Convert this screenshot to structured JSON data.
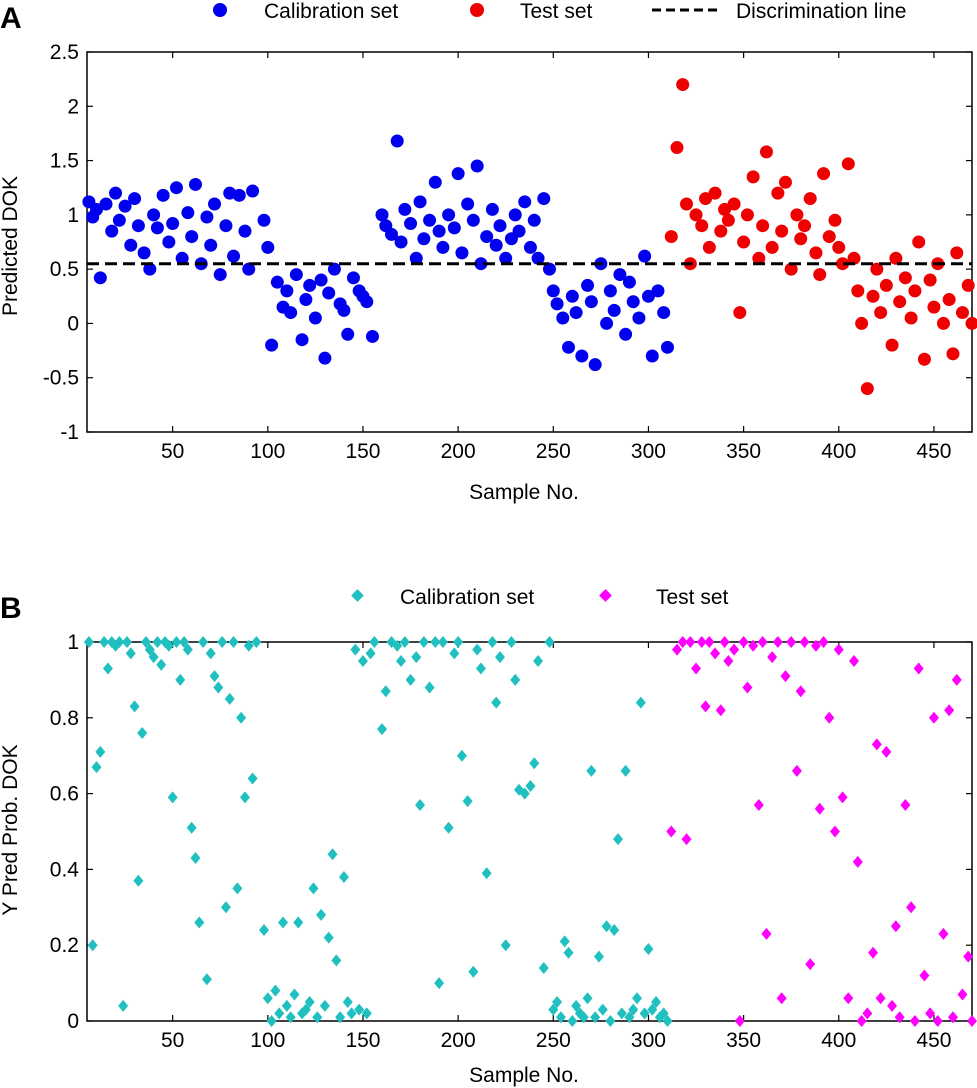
{
  "chart_data": [
    {
      "panel_label": "A",
      "type": "scatter",
      "xlabel": "Sample No.",
      "ylabel": "Predicted DOK",
      "xlim": [
        5,
        470
      ],
      "ylim": [
        -1,
        2.5
      ],
      "xticks": [
        50,
        100,
        150,
        200,
        250,
        300,
        350,
        400,
        450
      ],
      "yticks": [
        -1,
        -0.5,
        0,
        0.5,
        1,
        1.5,
        2,
        2.5
      ],
      "xtick_labels": [
        "50",
        "100",
        "150",
        "200",
        "250",
        "300",
        "350",
        "400",
        "450"
      ],
      "ytick_labels": [
        "-1",
        "-0.5",
        "0",
        "0.5",
        "1",
        "1.5",
        "2",
        "2.5"
      ],
      "legend": [
        "Calibration set",
        "Test set",
        "Discrimination line"
      ],
      "discrimination_line": 0.55,
      "series": [
        {
          "name": "Calibration set",
          "color": "#0000ee",
          "marker": "circle",
          "x": [
            6,
            8,
            10,
            12,
            15,
            18,
            20,
            22,
            25,
            28,
            30,
            32,
            35,
            38,
            40,
            42,
            45,
            48,
            50,
            52,
            55,
            58,
            60,
            62,
            65,
            68,
            70,
            72,
            75,
            78,
            80,
            82,
            85,
            88,
            90,
            92,
            98,
            100,
            102,
            105,
            108,
            110,
            112,
            115,
            118,
            120,
            122,
            125,
            128,
            130,
            132,
            135,
            138,
            140,
            142,
            145,
            148,
            150,
            152,
            155,
            160,
            162,
            165,
            168,
            170,
            172,
            175,
            178,
            180,
            182,
            185,
            188,
            190,
            192,
            195,
            198,
            200,
            202,
            205,
            208,
            210,
            212,
            215,
            218,
            220,
            222,
            225,
            228,
            230,
            232,
            235,
            238,
            240,
            242,
            245,
            248,
            250,
            252,
            255,
            258,
            260,
            262,
            265,
            268,
            270,
            272,
            275,
            278,
            280,
            282,
            285,
            288,
            290,
            292,
            295,
            298,
            300,
            302,
            305,
            308,
            310
          ],
          "y": [
            1.12,
            0.98,
            1.05,
            0.42,
            1.1,
            0.85,
            1.2,
            0.95,
            1.08,
            0.72,
            1.15,
            0.9,
            0.65,
            0.5,
            1.0,
            0.88,
            1.18,
            0.75,
            0.92,
            1.25,
            0.6,
            1.02,
            0.8,
            1.28,
            0.55,
            0.98,
            0.72,
            1.1,
            0.45,
            0.9,
            1.2,
            0.62,
            1.18,
            0.85,
            0.5,
            1.22,
            0.95,
            0.7,
            -0.2,
            0.38,
            0.15,
            0.3,
            0.1,
            0.45,
            -0.15,
            0.22,
            0.35,
            0.05,
            0.4,
            -0.32,
            0.28,
            0.5,
            0.18,
            0.12,
            -0.1,
            0.42,
            0.3,
            0.25,
            0.2,
            -0.12,
            1.0,
            0.9,
            0.82,
            1.68,
            0.75,
            1.05,
            0.92,
            0.6,
            1.12,
            0.78,
            0.95,
            1.3,
            0.85,
            0.7,
            1.0,
            0.88,
            1.38,
            0.65,
            1.1,
            0.95,
            1.45,
            0.55,
            0.8,
            1.05,
            0.72,
            0.9,
            0.6,
            0.78,
            1.0,
            0.85,
            1.12,
            0.7,
            0.95,
            0.6,
            1.15,
            0.5,
            0.3,
            0.18,
            0.05,
            -0.22,
            0.25,
            0.1,
            -0.3,
            0.35,
            0.2,
            -0.38,
            0.55,
            0.0,
            0.3,
            0.12,
            0.45,
            -0.1,
            0.38,
            0.2,
            0.05,
            0.62,
            0.25,
            -0.3,
            0.3,
            0.1,
            -0.22
          ]
        },
        {
          "name": "Test set",
          "color": "#ee0000",
          "marker": "circle",
          "x": [
            312,
            315,
            318,
            320,
            322,
            325,
            328,
            330,
            332,
            335,
            338,
            340,
            342,
            345,
            348,
            350,
            352,
            355,
            358,
            360,
            362,
            365,
            368,
            370,
            372,
            375,
            378,
            380,
            382,
            385,
            388,
            390,
            392,
            395,
            398,
            400,
            402,
            405,
            408,
            410,
            412,
            415,
            418,
            420,
            422,
            425,
            428,
            430,
            432,
            435,
            438,
            440,
            442,
            445,
            448,
            450,
            452,
            455,
            458,
            460,
            462,
            465,
            468,
            470
          ],
          "y": [
            0.8,
            1.62,
            2.2,
            1.1,
            0.55,
            1.0,
            0.9,
            1.15,
            0.7,
            1.2,
            0.85,
            1.05,
            0.95,
            1.1,
            0.1,
            0.75,
            1.0,
            1.35,
            0.6,
            0.9,
            1.58,
            0.7,
            1.2,
            0.85,
            1.3,
            0.5,
            1.0,
            0.78,
            0.9,
            1.15,
            0.65,
            0.45,
            1.38,
            0.8,
            0.95,
            0.7,
            0.55,
            1.47,
            0.6,
            0.3,
            0.0,
            -0.6,
            0.25,
            0.5,
            0.1,
            0.35,
            -0.2,
            0.6,
            0.2,
            0.42,
            0.05,
            0.3,
            0.75,
            -0.33,
            0.4,
            0.15,
            0.55,
            0.0,
            0.22,
            -0.28,
            0.65,
            0.1,
            0.35,
            0.0
          ]
        }
      ]
    },
    {
      "panel_label": "B",
      "type": "scatter",
      "xlabel": "Sample No.",
      "ylabel": "Y Pred Prob. DOK",
      "xlim": [
        5,
        470
      ],
      "ylim": [
        0,
        1
      ],
      "xticks": [
        50,
        100,
        150,
        200,
        250,
        300,
        350,
        400,
        450
      ],
      "yticks": [
        0,
        0.2,
        0.4,
        0.6,
        0.8,
        1
      ],
      "xtick_labels": [
        "50",
        "100",
        "150",
        "200",
        "250",
        "300",
        "350",
        "400",
        "450"
      ],
      "ytick_labels": [
        "0",
        "0.2",
        "0.4",
        "0.6",
        "0.8",
        "1"
      ],
      "legend": [
        "Calibration set",
        "Test set"
      ],
      "series": [
        {
          "name": "Calibration set",
          "color": "#20c0c0",
          "marker": "diamond",
          "x": [
            6,
            8,
            10,
            12,
            14,
            16,
            18,
            20,
            22,
            24,
            26,
            28,
            30,
            32,
            34,
            36,
            38,
            40,
            42,
            44,
            46,
            48,
            50,
            52,
            54,
            56,
            58,
            60,
            62,
            64,
            66,
            68,
            70,
            72,
            74,
            76,
            78,
            80,
            82,
            84,
            86,
            88,
            90,
            92,
            94,
            98,
            100,
            102,
            104,
            106,
            108,
            110,
            112,
            114,
            116,
            118,
            120,
            122,
            124,
            126,
            128,
            130,
            132,
            134,
            136,
            138,
            140,
            142,
            144,
            146,
            148,
            150,
            152,
            154,
            156,
            160,
            162,
            165,
            168,
            170,
            172,
            175,
            178,
            180,
            182,
            185,
            188,
            190,
            192,
            195,
            198,
            200,
            202,
            205,
            208,
            210,
            212,
            215,
            218,
            220,
            222,
            225,
            228,
            230,
            232,
            235,
            238,
            240,
            242,
            245,
            248,
            250,
            252,
            254,
            256,
            258,
            260,
            262,
            264,
            266,
            268,
            270,
            272,
            274,
            276,
            278,
            280,
            282,
            284,
            286,
            288,
            290,
            292,
            294,
            296,
            298,
            300,
            302,
            304,
            306,
            308,
            310
          ],
          "y": [
            1.0,
            0.2,
            0.67,
            0.71,
            1.0,
            0.93,
            1.0,
            0.99,
            1.0,
            0.04,
            1.0,
            0.97,
            0.83,
            0.37,
            0.76,
            1.0,
            0.98,
            0.96,
            1.0,
            0.94,
            1.0,
            0.99,
            0.59,
            1.0,
            0.9,
            1.0,
            0.98,
            0.51,
            0.43,
            0.26,
            1.0,
            0.11,
            0.97,
            0.91,
            0.88,
            1.0,
            0.3,
            0.85,
            1.0,
            0.35,
            0.8,
            0.59,
            0.99,
            0.64,
            1.0,
            0.24,
            0.06,
            0.0,
            0.08,
            0.02,
            0.26,
            0.04,
            0.01,
            0.07,
            0.26,
            0.02,
            0.03,
            0.05,
            0.35,
            0.01,
            0.28,
            0.04,
            0.22,
            0.44,
            0.16,
            0.01,
            0.38,
            0.05,
            0.02,
            0.98,
            0.03,
            0.95,
            0.02,
            0.97,
            1.0,
            0.77,
            0.87,
            1.0,
            0.99,
            0.95,
            1.0,
            0.9,
            0.96,
            0.57,
            1.0,
            0.88,
            1.0,
            0.1,
            1.0,
            0.51,
            0.97,
            1.0,
            0.7,
            0.58,
            0.13,
            0.98,
            0.93,
            0.39,
            1.0,
            0.84,
            0.96,
            0.2,
            1.0,
            0.9,
            0.61,
            0.6,
            0.62,
            0.68,
            0.95,
            0.14,
            1.0,
            0.03,
            0.05,
            0.01,
            0.21,
            0.18,
            0.0,
            0.04,
            0.02,
            0.01,
            0.06,
            0.66,
            0.01,
            0.17,
            0.03,
            0.25,
            0.0,
            0.24,
            0.48,
            0.02,
            0.66,
            0.01,
            0.03,
            0.06,
            0.84,
            0.02,
            0.19,
            0.03,
            0.05,
            0.01,
            0.02,
            0.0
          ]
        },
        {
          "name": "Test set",
          "color": "#ff00ff",
          "marker": "diamond",
          "x": [
            312,
            315,
            318,
            320,
            322,
            325,
            328,
            330,
            332,
            335,
            338,
            340,
            342,
            345,
            348,
            350,
            352,
            355,
            358,
            360,
            362,
            365,
            368,
            370,
            372,
            375,
            378,
            380,
            382,
            385,
            388,
            390,
            392,
            395,
            398,
            400,
            402,
            405,
            408,
            410,
            412,
            415,
            418,
            420,
            422,
            425,
            428,
            430,
            432,
            435,
            438,
            440,
            442,
            445,
            448,
            450,
            452,
            455,
            458,
            460,
            462,
            465,
            468,
            470
          ],
          "y": [
            0.5,
            0.98,
            1.0,
            0.48,
            1.0,
            0.93,
            1.0,
            0.83,
            1.0,
            0.97,
            0.82,
            1.0,
            0.95,
            0.98,
            0.0,
            1.0,
            0.88,
            0.99,
            0.57,
            1.0,
            0.23,
            0.96,
            1.0,
            0.06,
            0.91,
            1.0,
            0.66,
            0.87,
            1.0,
            0.15,
            0.99,
            0.56,
            1.0,
            0.8,
            0.5,
            0.98,
            0.59,
            0.06,
            0.95,
            0.42,
            0.0,
            0.02,
            0.18,
            0.73,
            0.06,
            0.71,
            0.04,
            0.25,
            0.01,
            0.57,
            0.3,
            0.0,
            0.93,
            0.12,
            0.02,
            0.8,
            0.0,
            0.23,
            0.82,
            0.01,
            0.9,
            0.07,
            0.17,
            0.0
          ]
        }
      ]
    }
  ]
}
